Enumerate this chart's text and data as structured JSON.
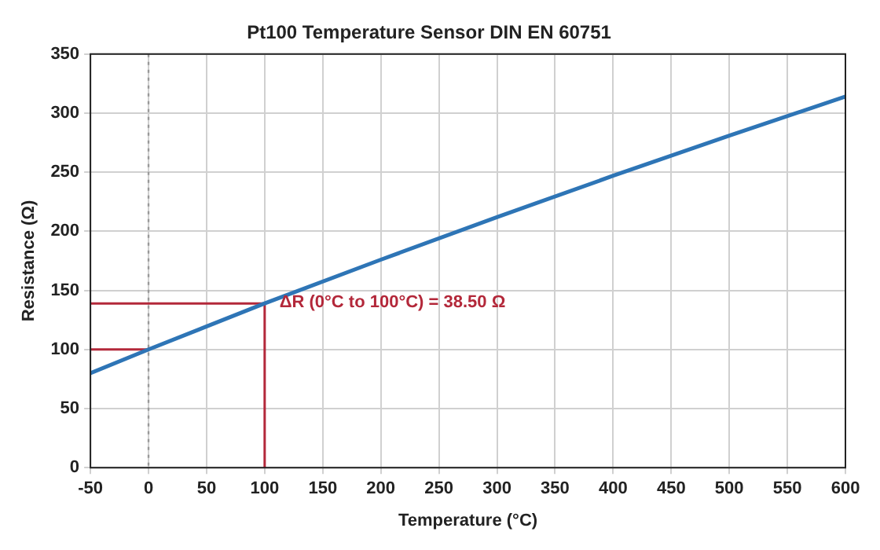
{
  "chart_data": {
    "type": "line",
    "title": "Pt100 Temperature Sensor DIN EN 60751",
    "xlabel": "Temperature (°C)",
    "ylabel": "Resistance (Ω)",
    "xlim": [
      -50,
      600
    ],
    "xticks": [
      -50,
      0,
      50,
      100,
      150,
      200,
      250,
      300,
      350,
      400,
      450,
      500,
      550,
      600
    ],
    "ylim": [
      0,
      350
    ],
    "yticks": [
      0,
      50,
      100,
      150,
      200,
      250,
      300,
      350
    ],
    "grid": true,
    "marker": "none",
    "series": [
      {
        "color": "#2e75b6",
        "x": [
          -50,
          0,
          100,
          200,
          300,
          400,
          500,
          600
        ],
        "values": [
          80,
          100,
          139,
          176,
          212,
          247,
          281,
          314
        ]
      },
      {
        "color": "#b3283a",
        "x": [
          -50,
          100,
          100
        ],
        "values": [
          139,
          139,
          0
        ]
      },
      {
        "color": "#b3283a",
        "x": [
          -50,
          0
        ],
        "values": [
          100,
          100
        ]
      }
    ],
    "ref_lines": [
      {
        "axis": "x",
        "value": 0,
        "color": "#999999",
        "line_style": "dotted"
      }
    ],
    "annotations": [
      "ΔR (0°C to 100°C) = 38.50 Ω"
    ]
  }
}
